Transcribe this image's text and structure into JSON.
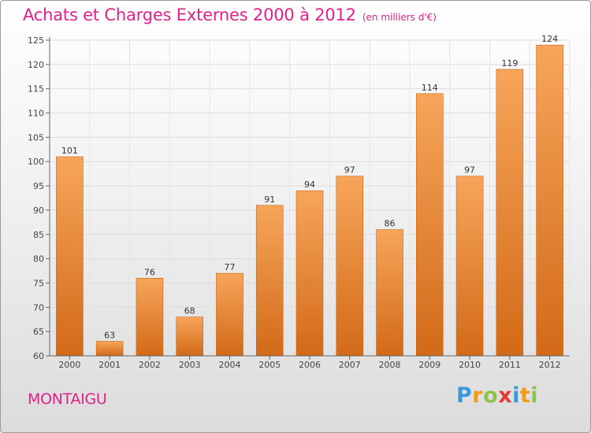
{
  "chart_data": {
    "type": "bar",
    "title": "Achats et Charges Externes 2000 à 2012",
    "subtitle": "(en milliers d'€)",
    "categories": [
      "2000",
      "2001",
      "2002",
      "2003",
      "2004",
      "2005",
      "2006",
      "2007",
      "2008",
      "2009",
      "2010",
      "2011",
      "2012"
    ],
    "values": [
      101,
      63,
      76,
      68,
      77,
      91,
      94,
      97,
      86,
      114,
      97,
      119,
      124
    ],
    "ylim": [
      60,
      125
    ],
    "yticks": [
      60,
      65,
      70,
      75,
      80,
      85,
      90,
      95,
      100,
      105,
      110,
      115,
      120,
      125
    ],
    "grid": true,
    "legend": "none",
    "xlabel": "",
    "ylabel": "",
    "colors": {
      "bar_top": "#f7a55a",
      "bar_bottom": "#d26a18",
      "title": "#e0218a"
    }
  },
  "footer": {
    "place": "MONTAIGU",
    "logo": {
      "text": "Proxiti",
      "letters": [
        "P",
        "r",
        "o",
        "x",
        "i",
        "t",
        "i"
      ],
      "letter_colors": [
        "#3a9ad9",
        "#f39c12",
        "#8bc34a",
        "#e53935",
        "#3a9ad9",
        "#f39c12",
        "#8bc34a"
      ]
    }
  }
}
